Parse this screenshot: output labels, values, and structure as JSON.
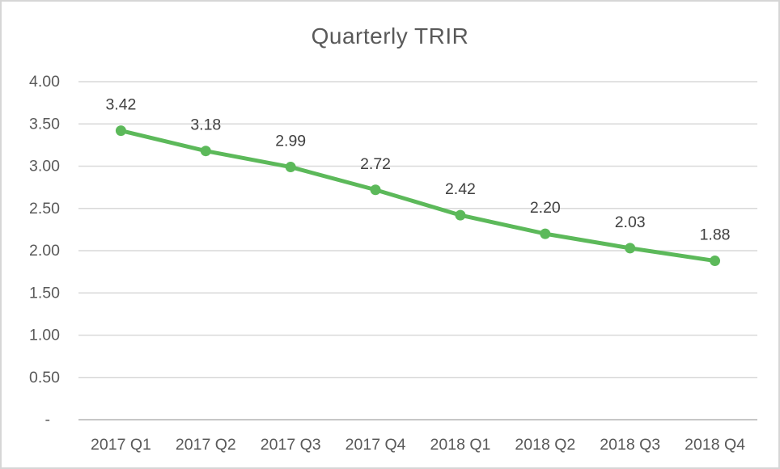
{
  "chart_data": {
    "type": "line",
    "title": "Quarterly TRIR",
    "categories": [
      "2017 Q1",
      "2017 Q2",
      "2017 Q3",
      "2017 Q4",
      "2018 Q1",
      "2018 Q2",
      "2018 Q3",
      "2018 Q4"
    ],
    "values": [
      3.42,
      3.18,
      2.99,
      2.72,
      2.42,
      2.2,
      2.03,
      1.88
    ],
    "data_labels": [
      "3.42",
      "3.18",
      "2.99",
      "2.72",
      "2.42",
      "2.20",
      "2.03",
      "1.88"
    ],
    "xlabel": "",
    "ylabel": "",
    "ylim": [
      0,
      4.0
    ],
    "ytick_interval": 0.5,
    "ytick_labels": [
      "-",
      "0.50",
      "1.00",
      "1.50",
      "2.00",
      "2.50",
      "3.00",
      "3.50",
      "4.00"
    ],
    "grid": true,
    "legend": "none",
    "marker_style": "circle",
    "colors": {
      "line": "#5cb95a",
      "marker": "#5cb95a",
      "gridline": "#d9d9d9",
      "axis_line": "#bfbfbf",
      "title_text": "#595959",
      "tick_text": "#595959",
      "data_label_text": "#404040",
      "background": "#ffffff",
      "border": "#d6d6d6"
    }
  }
}
